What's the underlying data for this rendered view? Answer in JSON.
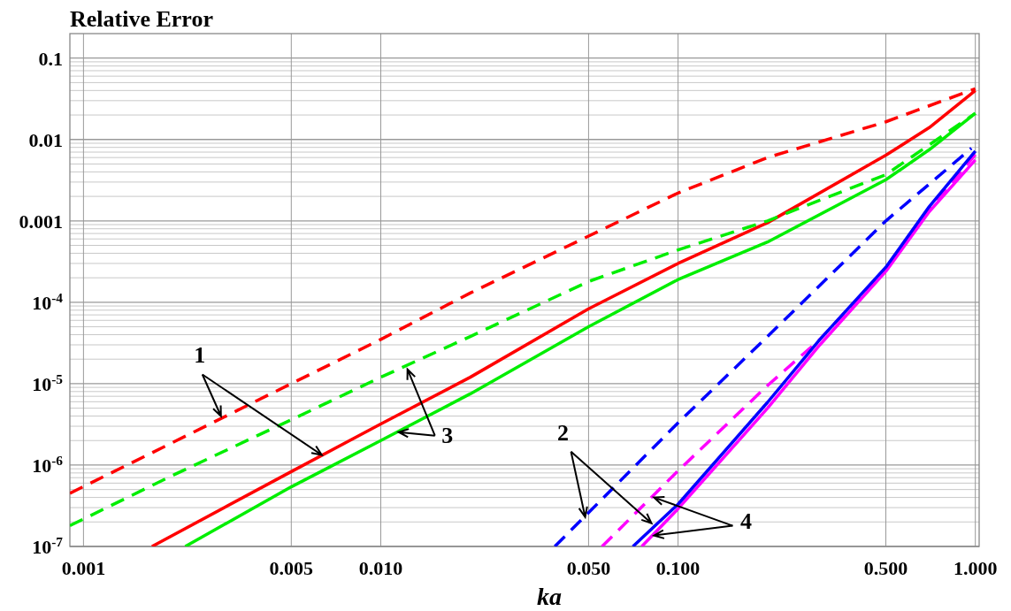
{
  "chart_data": {
    "type": "line",
    "title": "Relative Error",
    "xlabel": "ka",
    "log": "xy",
    "grid": true,
    "xlim": [
      0.0009,
      1.03
    ],
    "ylim": [
      1e-07,
      0.2
    ],
    "xticks": [
      {
        "value": 0.001,
        "label": "0.001"
      },
      {
        "value": 0.005,
        "label": "0.005"
      },
      {
        "value": 0.01,
        "label": "0.010"
      },
      {
        "value": 0.05,
        "label": "0.050"
      },
      {
        "value": 0.1,
        "label": "0.100"
      },
      {
        "value": 0.5,
        "label": "0.500"
      },
      {
        "value": 1,
        "label": "1.000"
      }
    ],
    "yticks": [
      {
        "value": 1e-07,
        "label": "10$^{-7}$"
      },
      {
        "value": 2e-07,
        "label": null
      },
      {
        "value": 3e-07,
        "label": null
      },
      {
        "value": 4e-07,
        "label": null
      },
      {
        "value": 5e-07,
        "label": null
      },
      {
        "value": 6e-07,
        "label": null
      },
      {
        "value": 7e-07,
        "label": null
      },
      {
        "value": 8e-07,
        "label": null
      },
      {
        "value": 9e-07,
        "label": null
      },
      {
        "value": 1e-06,
        "label": "10$^{-6}$"
      },
      {
        "value": 2e-06,
        "label": null
      },
      {
        "value": 3e-06,
        "label": null
      },
      {
        "value": 4e-06,
        "label": null
      },
      {
        "value": 5e-06,
        "label": null
      },
      {
        "value": 6e-06,
        "label": null
      },
      {
        "value": 7e-06,
        "label": null
      },
      {
        "value": 8e-06,
        "label": null
      },
      {
        "value": 9e-06,
        "label": null
      },
      {
        "value": 1e-05,
        "label": "10$^{-5}$"
      },
      {
        "value": 2e-05,
        "label": null
      },
      {
        "value": 3e-05,
        "label": null
      },
      {
        "value": 4e-05,
        "label": null
      },
      {
        "value": 5e-05,
        "label": null
      },
      {
        "value": 6e-05,
        "label": null
      },
      {
        "value": 7e-05,
        "label": null
      },
      {
        "value": 8e-05,
        "label": null
      },
      {
        "value": 9e-05,
        "label": null
      },
      {
        "value": 0.0001,
        "label": "10$^{-4}$"
      },
      {
        "value": 0.0002,
        "label": null
      },
      {
        "value": 0.0003,
        "label": null
      },
      {
        "value": 0.0004,
        "label": null
      },
      {
        "value": 0.0005,
        "label": null
      },
      {
        "value": 0.0006,
        "label": null
      },
      {
        "value": 0.0007,
        "label": null
      },
      {
        "value": 0.0008,
        "label": null
      },
      {
        "value": 0.0009,
        "label": null
      },
      {
        "value": 0.001,
        "label": "0.001"
      },
      {
        "value": 0.002,
        "label": null
      },
      {
        "value": 0.003,
        "label": null
      },
      {
        "value": 0.004,
        "label": null
      },
      {
        "value": 0.005,
        "label": null
      },
      {
        "value": 0.006,
        "label": null
      },
      {
        "value": 0.007,
        "label": null
      },
      {
        "value": 0.008,
        "label": null
      },
      {
        "value": 0.009,
        "label": null
      },
      {
        "value": 0.01,
        "label": "0.01"
      },
      {
        "value": 0.02,
        "label": null
      },
      {
        "value": 0.03,
        "label": null
      },
      {
        "value": 0.04,
        "label": null
      },
      {
        "value": 0.05,
        "label": null
      },
      {
        "value": 0.06,
        "label": null
      },
      {
        "value": 0.07,
        "label": null
      },
      {
        "value": 0.08,
        "label": null
      },
      {
        "value": 0.09,
        "label": null
      },
      {
        "value": 0.1,
        "label": "0.1"
      }
    ],
    "series": [
      {
        "color": "#ff0000",
        "line_style": "dashed",
        "x": [
          0.0009,
          0.002,
          0.005,
          0.01,
          0.02,
          0.05,
          0.1,
          0.2,
          0.5,
          1
        ],
        "values": [
          4.5e-07,
          1.9e-06,
          1e-05,
          3.5e-05,
          0.00013,
          0.00065,
          0.0022,
          0.006,
          0.0165,
          0.042
        ]
      },
      {
        "color": "#ff0000",
        "line_style": "solid",
        "x": [
          0.0017,
          0.005,
          0.01,
          0.02,
          0.05,
          0.1,
          0.2,
          0.5,
          0.7,
          1
        ],
        "values": [
          1e-07,
          8.3e-07,
          3.2e-06,
          1.2e-05,
          8.3e-05,
          0.0003,
          0.00095,
          0.0064,
          0.014,
          0.04
        ]
      },
      {
        "color": "#00ee00",
        "line_style": "dashed",
        "x": [
          0.0009,
          0.002,
          0.005,
          0.01,
          0.02,
          0.05,
          0.1,
          0.2,
          0.3,
          0.5,
          1
        ],
        "values": [
          1.8e-07,
          7.5e-07,
          3.6e-06,
          1.2e-05,
          3.8e-05,
          0.00018,
          0.00044,
          0.001,
          0.0018,
          0.0037,
          0.021
        ]
      },
      {
        "color": "#00ee00",
        "line_style": "solid",
        "x": [
          0.0022,
          0.005,
          0.01,
          0.02,
          0.05,
          0.1,
          0.2,
          0.5,
          0.7,
          1
        ],
        "values": [
          1e-07,
          5.4e-07,
          2e-06,
          7.5e-06,
          5e-05,
          0.00019,
          0.00055,
          0.0032,
          0.0075,
          0.021
        ]
      },
      {
        "color": "#0000ff",
        "line_style": "dashed",
        "x": [
          0.0385,
          0.05,
          0.1,
          0.2,
          0.5,
          0.97
        ],
        "values": [
          1e-07,
          2.6e-07,
          3.3e-06,
          3.8e-05,
          0.001,
          0.0078
        ]
      },
      {
        "color": "#ff00ff",
        "line_style": "dashed",
        "x": [
          0.0555,
          0.1,
          0.2,
          0.3,
          0.5,
          0.7,
          1
        ],
        "values": [
          1e-07,
          8.5e-07,
          9.5e-06,
          3.5e-05,
          0.00026,
          0.0014,
          0.0065
        ]
      },
      {
        "color": "#ff00ff",
        "line_style": "solid",
        "x": [
          0.0755,
          0.1,
          0.2,
          0.3,
          0.5,
          0.7,
          1
        ],
        "values": [
          1e-07,
          2.9e-07,
          5e-06,
          3e-05,
          0.00024,
          0.0013,
          0.0056
        ]
      },
      {
        "color": "#0000ff",
        "line_style": "solid",
        "x": [
          0.0705,
          0.1,
          0.2,
          0.3,
          0.5,
          0.7,
          1
        ],
        "values": [
          1e-07,
          3.3e-07,
          5.9e-06,
          3.5e-05,
          0.00027,
          0.0015,
          0.0072
        ]
      }
    ],
    "annotations": [
      {
        "text": "1",
        "x": 0.0029,
        "y": 4e-06
      },
      {
        "text": "3",
        "x": 0.0123,
        "y": 1.5e-05
      },
      {
        "text": "2",
        "x": 0.0487,
        "y": 2.3e-07
      },
      {
        "text": "4",
        "x": 0.083,
        "y": 4e-07
      }
    ]
  }
}
